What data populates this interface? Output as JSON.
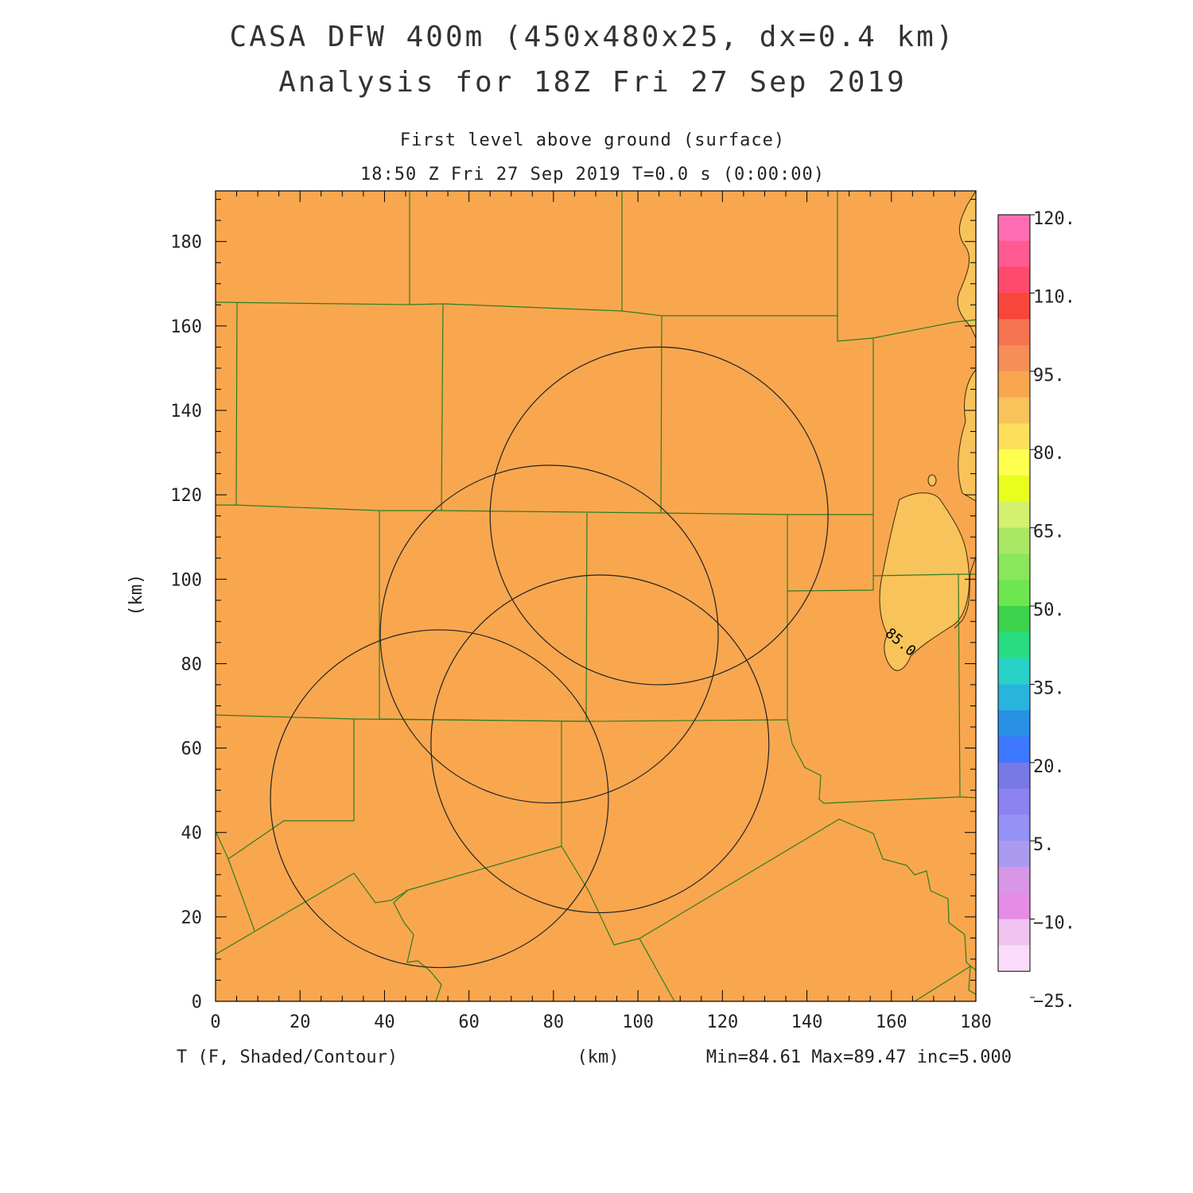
{
  "header": {
    "title_line1": "CASA DFW 400m (450x480x25, dx=0.4 km)",
    "title_line2": "Analysis for 18Z Fri 27 Sep 2019",
    "level": "First level above ground (surface)",
    "time": "18:50 Z Fri 27 Sep 2019    T=0.0 s (0:00:00)"
  },
  "axes": {
    "x_ticks": [
      "0",
      "20",
      "40",
      "60",
      "80",
      "100",
      "120",
      "140",
      "160",
      "180"
    ],
    "y_ticks": [
      "0",
      "20",
      "40",
      "60",
      "80",
      "100",
      "120",
      "140",
      "160",
      "180"
    ],
    "xlabel": "(km)",
    "ylabel": "(km)",
    "x_range": [
      0,
      180
    ],
    "y_range": [
      0,
      192
    ]
  },
  "footer": {
    "variable": "T (F, Shaded/Contour)",
    "stats": "Min=84.61 Max=89.47 inc=5.000"
  },
  "contour_label": "85.0",
  "colors": {
    "field": "#f8a74f",
    "warm_patch": "#f8c35a",
    "county_lines": "#2e7d1e",
    "radar_rings": "#222222"
  },
  "radar_rings_km": [
    {
      "cx": 105,
      "cy": 115,
      "r": 40
    },
    {
      "cx": 79,
      "cy": 87,
      "r": 40
    },
    {
      "cx": 91,
      "cy": 61,
      "r": 40
    },
    {
      "cx": 53,
      "cy": 48,
      "r": 40
    }
  ],
  "colorbar": {
    "labels": [
      "120.",
      "110.",
      "95.",
      "80.",
      "65.",
      "50.",
      "35.",
      "20.",
      "5.",
      "−10.",
      "−25."
    ],
    "colors": [
      "#ff6eb4",
      "#ff5a91",
      "#ff4a6b",
      "#f8463a",
      "#f5734f",
      "#f58e57",
      "#f8a74f",
      "#f8c35a",
      "#ffdf5a",
      "#ffff50",
      "#e8ff1e",
      "#d4f06e",
      "#aae864",
      "#8ae65a",
      "#6ee650",
      "#3cd24b",
      "#28dc82",
      "#28d2c8",
      "#28b4dc",
      "#2891e6",
      "#3c78ff",
      "#7878e6",
      "#8c82f0",
      "#9691f5",
      "#aa9bf0",
      "#d796e6",
      "#e68ce6",
      "#f0c3f0",
      "#fadcfa"
    ]
  }
}
